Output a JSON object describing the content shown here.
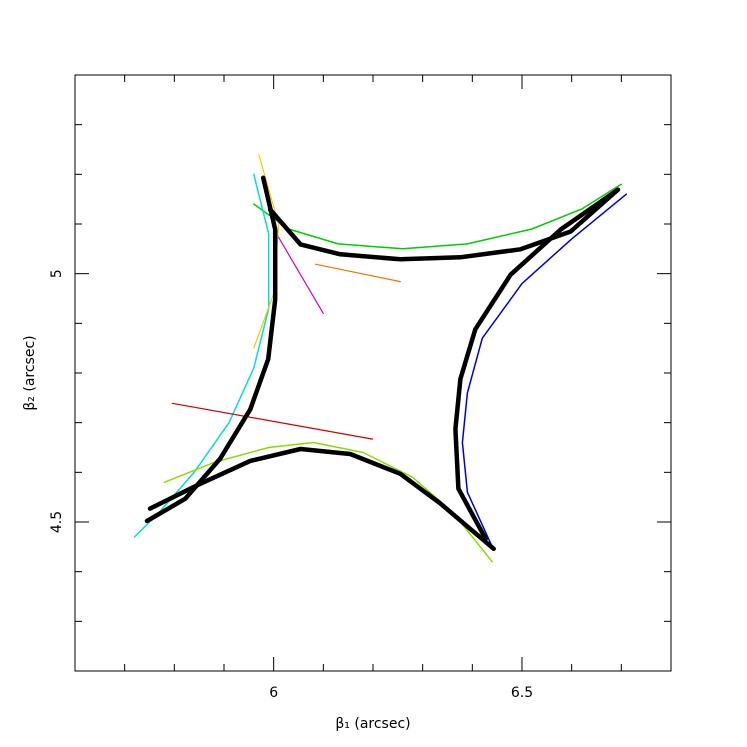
{
  "chart_data": {
    "type": "line",
    "xlabel": "β₁ (arcsec)",
    "ylabel": "β₂ (arcsec)",
    "xlim": [
      5.6,
      6.8
    ],
    "ylim": [
      4.2,
      5.4
    ],
    "xticks": [
      6,
      6.5
    ],
    "yticks": [
      4.5,
      5
    ],
    "xminorticks": [
      5.7,
      5.8,
      5.9,
      6.1,
      6.2,
      6.3,
      6.4,
      6.6,
      6.7
    ],
    "yminorticks": [
      4.3,
      4.4,
      4.6,
      4.7,
      4.8,
      4.9,
      5.1,
      5.2,
      5.3
    ],
    "series": [
      {
        "color": "#00cc00",
        "linewidth": 1.5,
        "x": [
          5.96,
          6.03,
          6.13,
          6.26,
          6.39,
          6.52,
          6.62,
          6.7
        ],
        "y": [
          5.14,
          5.09,
          5.06,
          5.05,
          5.06,
          5.09,
          5.13,
          5.18
        ]
      },
      {
        "color": "#00dddd",
        "linewidth": 1.5,
        "x": [
          5.96,
          5.99,
          5.99,
          5.96,
          5.91,
          5.84,
          5.77,
          5.72
        ],
        "y": [
          5.2,
          5.08,
          4.93,
          4.81,
          4.7,
          4.6,
          4.52,
          4.47
        ]
      },
      {
        "color": "#88dd00",
        "linewidth": 1.5,
        "x": [
          5.78,
          5.88,
          5.99,
          6.08,
          6.18,
          6.28,
          6.36,
          6.44
        ],
        "y": [
          4.58,
          4.62,
          4.65,
          4.66,
          4.64,
          4.59,
          4.52,
          4.42
        ]
      },
      {
        "color": "#0000cc",
        "linewidth": 1.5,
        "x": [
          6.71,
          6.6,
          6.5,
          6.42,
          6.39,
          6.38,
          6.39,
          6.44
        ],
        "y": [
          5.16,
          5.07,
          4.98,
          4.87,
          4.76,
          4.66,
          4.56,
          4.45
        ]
      },
      {
        "color": "#cc0000",
        "linewidth": 1.2,
        "x": [
          5.796,
          6.199
        ],
        "y": [
          4.739,
          4.667
        ]
      },
      {
        "color": "#ee7700",
        "linewidth": 1.2,
        "x": [
          6.084,
          6.255
        ],
        "y": [
          5.019,
          4.984
        ]
      },
      {
        "color": "#cc00cc",
        "linewidth": 1.2,
        "x": [
          6.0,
          6.1
        ],
        "y": [
          5.09,
          4.92
        ]
      },
      {
        "color": "#eecc00",
        "linewidth": 1.2,
        "x": [
          5.97,
          6.01,
          6.0,
          5.96
        ],
        "y": [
          5.24,
          5.1,
          4.96,
          4.85
        ]
      },
      {
        "color": "#000000",
        "linewidth": 4.5,
        "x": [
          5.993,
          6.054,
          6.134,
          6.255,
          6.376,
          6.497,
          6.598,
          6.693
        ],
        "y": [
          5.129,
          5.059,
          5.039,
          5.029,
          5.033,
          5.049,
          5.085,
          5.169
        ]
      },
      {
        "color": "#000000",
        "linewidth": 4.5,
        "x": [
          5.979,
          6.003,
          6.003,
          5.989,
          5.953,
          5.892,
          5.822,
          5.745
        ],
        "y": [
          5.193,
          5.089,
          4.948,
          4.828,
          4.727,
          4.627,
          4.547,
          4.502
        ]
      },
      {
        "color": "#000000",
        "linewidth": 4.5,
        "x": [
          5.751,
          5.852,
          5.953,
          6.054,
          6.154,
          6.255,
          6.336,
          6.443
        ],
        "y": [
          4.527,
          4.577,
          4.623,
          4.647,
          4.637,
          4.597,
          4.537,
          4.446
        ]
      },
      {
        "color": "#000000",
        "linewidth": 4.5,
        "x": [
          6.693,
          6.578,
          6.477,
          6.406,
          6.376,
          6.366,
          6.372,
          6.427
        ],
        "y": [
          5.169,
          5.089,
          4.998,
          4.888,
          4.788,
          4.687,
          4.567,
          4.466
        ]
      }
    ]
  }
}
